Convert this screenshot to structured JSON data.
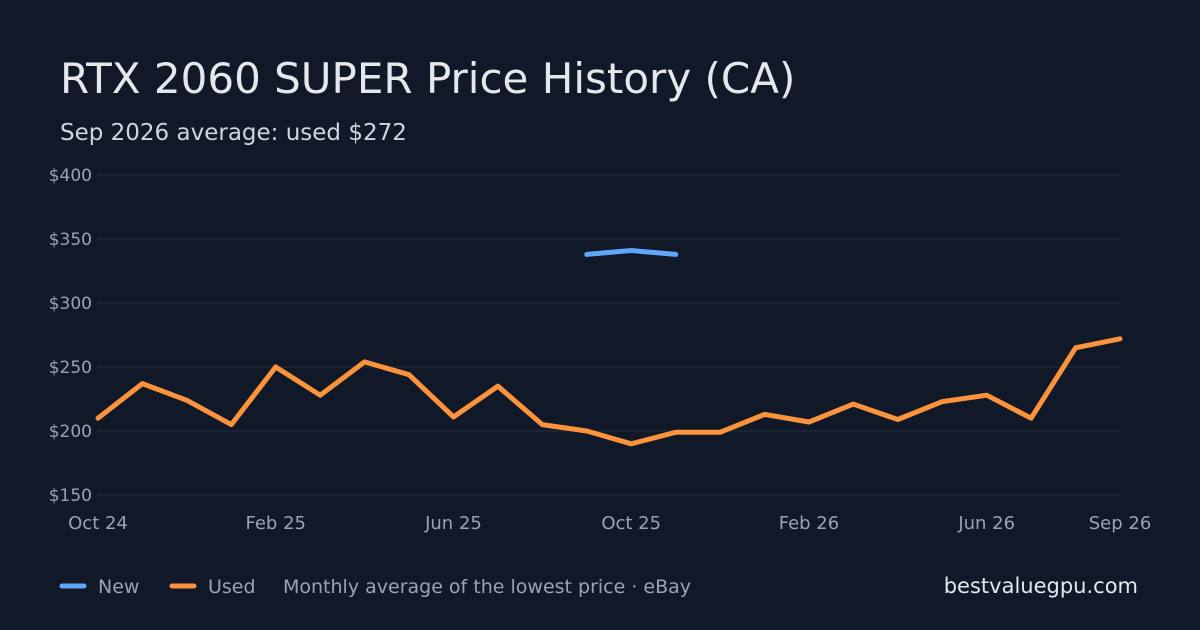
{
  "chart_data": {
    "type": "line",
    "title": "RTX 2060 SUPER Price History (CA)",
    "subtitle": "Sep 2026 average: used $272",
    "xlabel": "",
    "ylabel": "",
    "ylim": [
      150,
      400
    ],
    "yticks": [
      150,
      200,
      250,
      300,
      350,
      400
    ],
    "ytick_labels": [
      "$150",
      "$200",
      "$250",
      "$300",
      "$350",
      "$400"
    ],
    "x": [
      "2024-10",
      "2024-11",
      "2024-12",
      "2025-01",
      "2025-02",
      "2025-03",
      "2025-04",
      "2025-05",
      "2025-06",
      "2025-07",
      "2025-08",
      "2025-09",
      "2025-10",
      "2025-11",
      "2025-12",
      "2026-01",
      "2026-02",
      "2026-03",
      "2026-04",
      "2026-05",
      "2026-06",
      "2026-07",
      "2026-08",
      "2026-09"
    ],
    "xticks": [
      {
        "x": "2024-10",
        "label": "Oct 24"
      },
      {
        "x": "2025-02",
        "label": "Feb 25"
      },
      {
        "x": "2025-06",
        "label": "Jun 25"
      },
      {
        "x": "2025-10",
        "label": "Oct 25"
      },
      {
        "x": "2026-02",
        "label": "Feb 26"
      },
      {
        "x": "2026-06",
        "label": "Jun 26"
      },
      {
        "x": "2026-09",
        "label": "Sep 26"
      }
    ],
    "series": [
      {
        "name": "New",
        "color": "#60a5fa",
        "values": [
          null,
          null,
          null,
          null,
          null,
          null,
          null,
          null,
          null,
          null,
          null,
          338,
          341,
          338,
          null,
          null,
          null,
          null,
          null,
          null,
          null,
          null,
          null,
          null
        ]
      },
      {
        "name": "Used",
        "color": "#fb923c",
        "values": [
          210,
          237,
          224,
          205,
          250,
          228,
          254,
          244,
          211,
          235,
          205,
          200,
          190,
          199,
          199,
          213,
          207,
          221,
          209,
          223,
          228,
          210,
          265,
          272
        ]
      }
    ],
    "legend_placement": "bottom-left",
    "grid": true
  },
  "footer": {
    "note": "Monthly average of the lowest price · eBay",
    "brand": "bestvaluegpu.com"
  }
}
